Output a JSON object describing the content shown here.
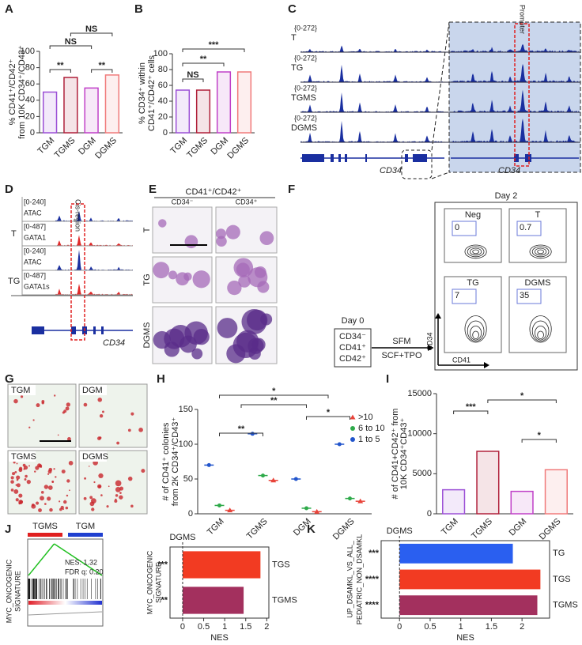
{
  "panel_labels": [
    "A",
    "B",
    "C",
    "D",
    "E",
    "F",
    "G",
    "H",
    "I",
    "J",
    "K"
  ],
  "chart_data": [
    {
      "type": "bar",
      "categories": [
        "TGM",
        "TGMS",
        "DGM",
        "DGMS"
      ],
      "values": [
        50,
        68,
        55,
        71
      ],
      "colors": [
        "#9b4fd6",
        "#b0203a",
        "#c040c8",
        "#f07a7a"
      ],
      "ylabel": [
        "% CD41⁺/CD42⁺",
        "from 10K CD34⁺/CD43⁺"
      ],
      "ylim": [
        0,
        100
      ],
      "yticks": [
        0,
        20,
        40,
        60,
        80,
        100
      ],
      "annotations": [
        "**",
        "NS",
        "NS",
        "**"
      ]
    },
    {
      "type": "bar",
      "categories": [
        "TGM",
        "TGMS",
        "DGM",
        "DGMS"
      ],
      "values": [
        54,
        54,
        77,
        77
      ],
      "colors": [
        "#9b4fd6",
        "#b0203a",
        "#c040c8",
        "#f07a7a"
      ],
      "ylabel": [
        "% CD34⁺ within",
        "CD41⁺/CD42⁺ cells"
      ],
      "ylim": [
        0,
        100
      ],
      "yticks": [
        0,
        20,
        40,
        60,
        80,
        100
      ],
      "annotations": [
        "NS",
        "**",
        "***"
      ]
    },
    {
      "type": "dot",
      "categories": [
        "TGM",
        "TGMS",
        "DGM",
        "DGMS"
      ],
      "series": [
        {
          "name": ">10",
          "color": "#e8443a",
          "marker": "triangle",
          "values": [
            5,
            48,
            3,
            18
          ]
        },
        {
          "name": "6 to 10",
          "color": "#2eaa4a",
          "marker": "circle",
          "values": [
            12,
            55,
            8,
            22
          ]
        },
        {
          "name": "1 to 5",
          "color": "#2255cc",
          "marker": "circle",
          "values": [
            70,
            115,
            50,
            100
          ]
        }
      ],
      "ylabel": [
        "# of CD41⁺ colonies",
        "from 2K CD34⁺/CD43⁺"
      ],
      "ylim": [
        0,
        150
      ],
      "yticks": [
        0,
        50,
        100,
        150
      ],
      "annotations": [
        "*",
        "**",
        "**",
        "*"
      ]
    },
    {
      "type": "bar",
      "categories": [
        "TGM",
        "TGMS",
        "DGM",
        "DGMS"
      ],
      "values": [
        3000,
        7800,
        2800,
        5500
      ],
      "colors": [
        "#9b4fd6",
        "#b0203a",
        "#c040c8",
        "#f07a7a"
      ],
      "ylabel": [
        "# of CD41+CD42⁺ from",
        "10K CD34⁺CD43⁺"
      ],
      "ylim": [
        0,
        15000
      ],
      "yticks": [
        0,
        5000,
        10000,
        15000
      ],
      "annotations": [
        "***",
        "*",
        "*"
      ]
    },
    {
      "type": "barh",
      "title": "DGMS",
      "categories": [
        "TGS",
        "TGMS"
      ],
      "values": [
        1.85,
        1.45
      ],
      "colors": [
        "#f23b22",
        "#a3305e"
      ],
      "xlabel": "NES",
      "ylabel": [
        "MYC_ONCOGENIC",
        "SIGNATURE"
      ],
      "xlim": [
        -0.3,
        2.05
      ],
      "xticks": [
        0,
        0.5,
        1,
        1.5,
        2
      ],
      "annotations": [
        "***",
        "**"
      ]
    },
    {
      "type": "barh",
      "title": "DGMS",
      "categories": [
        "TG",
        "TGS",
        "TGMS"
      ],
      "values": [
        1.85,
        2.3,
        2.25
      ],
      "colors": [
        "#2a5ff0",
        "#f23b22",
        "#a3305e"
      ],
      "xlabel": "NES",
      "ylabel": [
        "UP_DSAMKL_VS_ALL_",
        "PEDIATRIC_NON_DSAMKL"
      ],
      "xlim": [
        -0.3,
        2.45
      ],
      "xticks": [
        0,
        0.5,
        1,
        1.5,
        2
      ],
      "annotations": [
        "***",
        "****",
        "****"
      ]
    }
  ],
  "panel_c": {
    "range": "{0-272}",
    "tracks": [
      "T",
      "TG",
      "TGMS",
      "DGMS"
    ],
    "promoter": "Promoter",
    "gene": "CD34",
    "gene_zoom": "CD34"
  },
  "panel_d": {
    "tracks": [
      {
        "range": "[0-240]",
        "name": "ATAC"
      },
      {
        "range": "[0-487]",
        "name": "GATA1"
      },
      {
        "range": "[0-240]",
        "name": "ATAC"
      },
      {
        "range": "[0-487]",
        "name": "GATA1s"
      }
    ],
    "groups": [
      "T",
      "TG"
    ],
    "region": "Cis-region",
    "gene": "CD34"
  },
  "panel_e": {
    "header": "CD41⁺/CD42⁺",
    "columns": [
      "CD34⁻",
      "CD34⁺"
    ],
    "rows": [
      "T",
      "TG",
      "DGMS"
    ]
  },
  "panel_f": {
    "day0": "Day 0",
    "markers": [
      "CD34⁻",
      "CD41⁺",
      "CD42⁺"
    ],
    "medium": "SFM",
    "factors": "SCF+TPO",
    "day2": "Day 2",
    "plots": [
      {
        "name": "Neg",
        "gate": 0
      },
      {
        "name": "T",
        "gate": 0.7
      },
      {
        "name": "TG",
        "gate": 7
      },
      {
        "name": "DGMS",
        "gate": 35
      }
    ],
    "yaxis": "CD34",
    "xaxis": "CD41"
  },
  "panel_g": {
    "images": [
      "TGM",
      "DGM",
      "TGMS",
      "DGMS"
    ]
  },
  "panel_j": {
    "groups": [
      "TGMS",
      "TGM"
    ],
    "nes": "NES: 1.32",
    "fdr": "FDR q: 0.20",
    "ylabel": [
      "MYC_ONCOGENIC",
      "SIGNATURE"
    ]
  }
}
